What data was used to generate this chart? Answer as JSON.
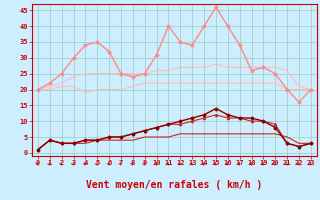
{
  "background_color": "#cceeff",
  "grid_color": "#99ccbb",
  "xlabel": "Vent moyen/en rafales ( km/h )",
  "xlabel_color": "#cc0000",
  "xlabel_fontsize": 7,
  "x": [
    0,
    1,
    2,
    3,
    4,
    5,
    6,
    7,
    8,
    9,
    10,
    11,
    12,
    13,
    14,
    15,
    16,
    17,
    18,
    19,
    20,
    21,
    22,
    23
  ],
  "ylim": [
    -1,
    47
  ],
  "yticks": [
    0,
    5,
    10,
    15,
    20,
    25,
    30,
    35,
    40,
    45
  ],
  "xticks": [
    0,
    1,
    2,
    3,
    4,
    5,
    6,
    7,
    8,
    9,
    10,
    11,
    12,
    13,
    14,
    15,
    16,
    17,
    18,
    19,
    20,
    21,
    22,
    23
  ],
  "line1": {
    "values": [
      20,
      20,
      21,
      21,
      19,
      20,
      20,
      20,
      21,
      22,
      22,
      22,
      22,
      22,
      22,
      22,
      22,
      22,
      22,
      22,
      22,
      20,
      20,
      20
    ],
    "color": "#ffbbbb",
    "lw": 0.8
  },
  "line2": {
    "values": [
      20,
      21,
      22,
      24,
      25,
      25,
      25,
      25,
      25,
      25,
      26,
      26,
      27,
      27,
      27,
      28,
      27,
      27,
      27,
      27,
      27,
      26,
      21,
      20
    ],
    "color": "#ffbbbb",
    "lw": 0.8
  },
  "line3": {
    "values": [
      20,
      22,
      25,
      30,
      34,
      35,
      32,
      25,
      24,
      25,
      31,
      40,
      35,
      34,
      40,
      46,
      40,
      34,
      26,
      27,
      25,
      20,
      16,
      20
    ],
    "color": "#ff8888",
    "lw": 1.0,
    "marker": "D",
    "marker_size": 1.5
  },
  "line4": {
    "values": [
      1,
      4,
      3,
      3,
      3,
      4,
      4,
      4,
      4,
      5,
      5,
      5,
      6,
      6,
      6,
      6,
      6,
      6,
      6,
      6,
      6,
      5,
      3,
      3
    ],
    "color": "#cc2222",
    "lw": 0.8
  },
  "line5": {
    "values": [
      1,
      4,
      3,
      3,
      4,
      4,
      5,
      5,
      6,
      7,
      8,
      9,
      9,
      10,
      11,
      12,
      11,
      11,
      10,
      10,
      9,
      3,
      2,
      3
    ],
    "color": "#cc2222",
    "lw": 0.8,
    "marker": "^",
    "marker_size": 1.5
  },
  "line6": {
    "values": [
      1,
      4,
      3,
      3,
      4,
      4,
      5,
      5,
      6,
      7,
      8,
      9,
      10,
      11,
      12,
      14,
      12,
      11,
      11,
      10,
      8,
      3,
      2,
      3
    ],
    "color": "#880000",
    "lw": 1.0,
    "marker": "D",
    "marker_size": 1.5
  },
  "arrow_color": "#cc0000",
  "tick_color": "#cc0000",
  "tick_fontsize": 5,
  "axis_linewidth": 0.8
}
